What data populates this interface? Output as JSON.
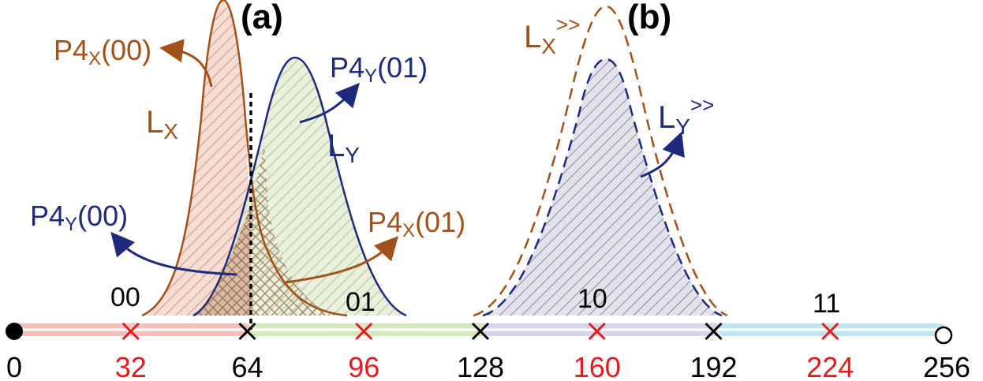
{
  "panels": {
    "a": "(a)",
    "b": "(b)"
  },
  "axis": {
    "ticks": [
      {
        "label": "0",
        "kind": "endpoint-filled",
        "color": "#000000"
      },
      {
        "label": "32",
        "kind": "red-cross",
        "color": "#e8191e"
      },
      {
        "label": "64",
        "kind": "black-cross",
        "color": "#000000"
      },
      {
        "label": "96",
        "kind": "red-cross",
        "color": "#e8191e"
      },
      {
        "label": "128",
        "kind": "black-cross",
        "color": "#000000"
      },
      {
        "label": "160",
        "kind": "red-cross",
        "color": "#e8191e"
      },
      {
        "label": "192",
        "kind": "black-cross",
        "color": "#000000"
      },
      {
        "label": "224",
        "kind": "red-cross",
        "color": "#e8191e"
      },
      {
        "label": "256",
        "kind": "endpoint-open",
        "color": "#000000"
      }
    ],
    "segments": [
      {
        "code": "00",
        "color": "#f2b9b6"
      },
      {
        "code": "01",
        "color": "#cfe6b4"
      },
      {
        "code": "10",
        "color": "#d2d0ea"
      },
      {
        "code": "11",
        "color": "#b9e2ee"
      }
    ]
  },
  "curves": {
    "lx": {
      "base": "L",
      "sub": "X",
      "color": "#a0521a"
    },
    "ly": {
      "base": "L",
      "sub": "Y",
      "color": "#1f2a7a"
    },
    "lx_shift": {
      "base": "L",
      "sub": "X",
      "sup": ">>",
      "color": "#a0521a"
    },
    "ly_shift": {
      "base": "L",
      "sub": "Y",
      "sup": ">>",
      "color": "#1f2a7a"
    }
  },
  "annotations": {
    "p4x00": {
      "pre": "P4",
      "sub": "X",
      "post": "(00)",
      "color": "#a0521a"
    },
    "p4y01": {
      "pre": "P4",
      "sub": "Y",
      "post": "(01)",
      "color": "#1f2a7a"
    },
    "p4y00": {
      "pre": "P4",
      "sub": "Y",
      "post": "(00)",
      "color": "#1f2a7a"
    },
    "p4x01": {
      "pre": "P4",
      "sub": "X",
      "post": "(01)",
      "color": "#a0521a"
    }
  }
}
